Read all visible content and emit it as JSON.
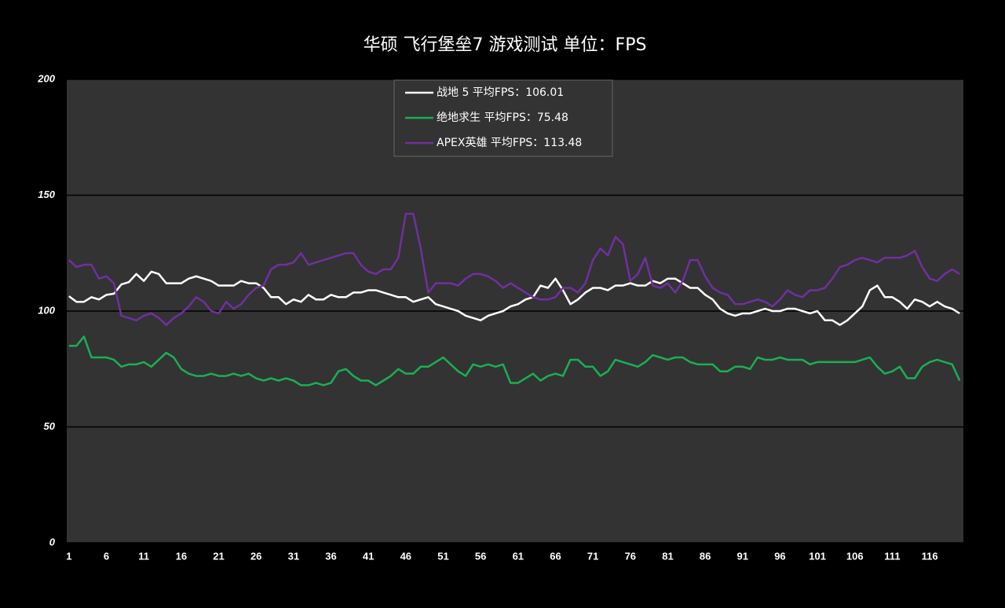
{
  "chart_data": {
    "type": "line",
    "title": "华硕 飞行堡垒7 游戏测试 单位：FPS",
    "x": [
      1,
      2,
      3,
      4,
      5,
      6,
      7,
      8,
      9,
      10,
      11,
      12,
      13,
      14,
      15,
      16,
      17,
      18,
      19,
      20,
      21,
      22,
      23,
      24,
      25,
      26,
      27,
      28,
      29,
      30,
      31,
      32,
      33,
      34,
      35,
      36,
      37,
      38,
      39,
      40,
      41,
      42,
      43,
      44,
      45,
      46,
      47,
      48,
      49,
      50,
      51,
      52,
      53,
      54,
      55,
      56,
      57,
      58,
      59,
      60,
      61,
      62,
      63,
      64,
      65,
      66,
      67,
      68,
      69,
      70,
      71,
      72,
      73,
      74,
      75,
      76,
      77,
      78,
      79,
      80,
      81,
      82,
      83,
      84,
      85,
      86,
      87,
      88,
      89,
      90,
      91,
      92,
      93,
      94,
      95,
      96,
      97,
      98,
      99,
      100,
      101,
      102,
      103,
      104,
      105,
      106,
      107,
      108,
      109,
      110,
      111,
      112,
      113,
      114,
      115,
      116,
      117,
      118,
      119,
      120
    ],
    "xlim": [
      0.7,
      120.5
    ],
    "xticks": [
      1,
      6,
      11,
      16,
      21,
      26,
      31,
      36,
      41,
      46,
      51,
      56,
      61,
      66,
      71,
      76,
      81,
      86,
      91,
      96,
      101,
      106,
      111,
      116
    ],
    "ylim": [
      0,
      200
    ],
    "yticks": [
      0,
      50,
      100,
      150,
      200
    ],
    "grid": true,
    "legend": "upper center",
    "series": [
      {
        "name": "战地 5 平均FPS：106.01",
        "color": "#ffffff",
        "values": [
          106.4,
          104,
          104,
          106,
          105,
          107,
          107.5,
          111.5,
          112.5,
          116,
          113,
          117,
          116,
          112,
          112,
          112,
          114,
          115,
          114,
          113,
          111,
          111,
          111,
          113,
          112,
          112,
          110,
          106,
          106,
          103,
          105,
          104,
          107,
          105,
          105,
          107,
          106,
          106,
          108,
          108,
          109,
          109,
          108,
          107,
          106,
          106,
          104,
          105,
          106,
          103,
          102,
          101,
          100,
          98,
          97,
          96,
          98,
          99,
          100,
          102,
          103,
          105,
          106,
          111,
          110,
          114,
          109,
          103,
          105,
          108,
          110,
          110,
          109,
          111,
          111,
          112,
          111,
          111,
          113,
          112,
          114,
          114,
          112,
          110,
          110,
          107,
          105,
          101,
          99,
          98,
          99,
          99,
          100,
          101,
          100,
          100,
          101,
          101,
          100,
          99,
          100,
          96,
          96,
          94,
          96,
          99,
          102,
          109,
          111,
          106,
          106,
          104,
          101,
          105,
          104,
          102,
          104,
          102,
          101,
          99
        ]
      },
      {
        "name": "绝地求生 平均FPS：75.48",
        "color": "#1aaf54",
        "values": [
          85,
          85,
          89,
          80,
          80,
          80,
          79,
          76,
          77,
          77,
          78,
          76,
          79,
          82,
          80,
          75,
          73,
          72,
          72,
          73,
          72,
          72,
          73,
          72,
          73,
          71,
          70,
          71,
          70,
          71,
          70,
          68,
          68,
          69,
          68,
          69,
          74,
          75,
          72,
          70,
          70,
          68,
          70,
          72,
          75,
          73,
          73,
          76,
          76,
          78,
          80,
          77,
          74,
          72,
          77,
          76,
          77,
          76,
          77,
          69,
          69,
          71,
          73,
          70,
          72,
          73,
          72,
          79,
          79,
          76,
          76,
          72,
          74,
          79,
          78,
          77,
          76,
          78,
          81,
          80,
          79,
          80,
          80,
          78,
          77,
          77,
          77,
          74,
          74,
          76,
          76,
          75,
          80,
          79,
          79,
          80,
          79,
          79,
          79,
          77,
          78,
          78,
          78,
          78,
          78,
          78,
          79,
          80,
          76,
          73,
          74,
          76,
          71,
          71,
          76,
          78,
          79,
          78,
          77,
          70
        ]
      },
      {
        "name": "APEX英雄 平均FPS：113.48",
        "color": "#7030a0",
        "values": [
          122,
          119,
          120,
          120,
          114,
          115,
          112,
          98,
          97,
          96,
          98,
          99,
          97,
          94,
          97,
          99,
          102,
          106,
          104,
          100,
          99,
          104,
          101,
          103,
          107,
          110,
          111,
          118,
          120,
          120,
          121,
          125,
          120,
          121,
          122,
          123,
          124,
          125,
          125,
          120,
          117,
          116,
          118,
          118,
          123,
          142,
          142,
          127,
          108,
          112,
          112,
          112,
          111,
          114,
          116,
          116,
          115,
          113,
          110,
          112,
          110,
          108,
          106,
          105,
          105,
          106,
          110,
          110,
          108,
          112,
          122,
          127,
          124,
          132,
          129,
          113,
          116,
          123,
          111,
          110,
          112,
          108,
          113,
          122,
          122,
          115,
          110,
          108,
          107,
          103,
          103,
          104,
          105,
          104,
          102,
          105,
          109,
          107,
          106,
          109,
          109,
          110,
          114,
          119,
          120,
          122,
          123,
          122,
          121,
          123,
          123,
          123,
          124,
          126,
          119,
          114,
          113,
          116,
          118,
          116
        ]
      }
    ]
  }
}
